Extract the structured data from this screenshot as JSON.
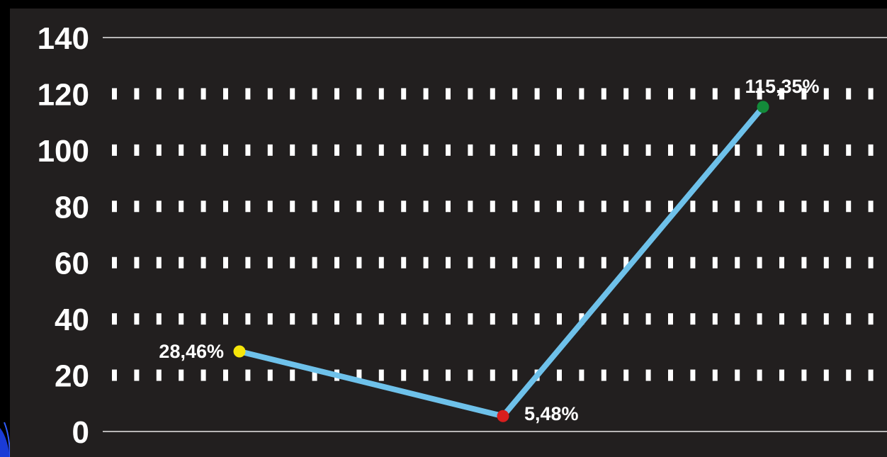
{
  "chart_data": {
    "type": "line",
    "title": "",
    "xlabel": "",
    "ylabel": "",
    "ylim": [
      0,
      140
    ],
    "y_ticks": [
      "0",
      "20",
      "40",
      "60",
      "80",
      "100",
      "120",
      "140"
    ],
    "grid": "dotted horizontal",
    "points": [
      {
        "value": 28.46,
        "label": "28,46%",
        "color": "#f5e50a"
      },
      {
        "value": 5.48,
        "label": "5,48%",
        "color": "#d81e1e"
      },
      {
        "value": 115.35,
        "label": "115,35%",
        "color": "#138a3a"
      }
    ]
  },
  "colors": {
    "background": "#221f1f",
    "frame": "#000000",
    "line": "#6ec1ea",
    "grid": "#ffffff",
    "accent": "#1a3bd6"
  }
}
